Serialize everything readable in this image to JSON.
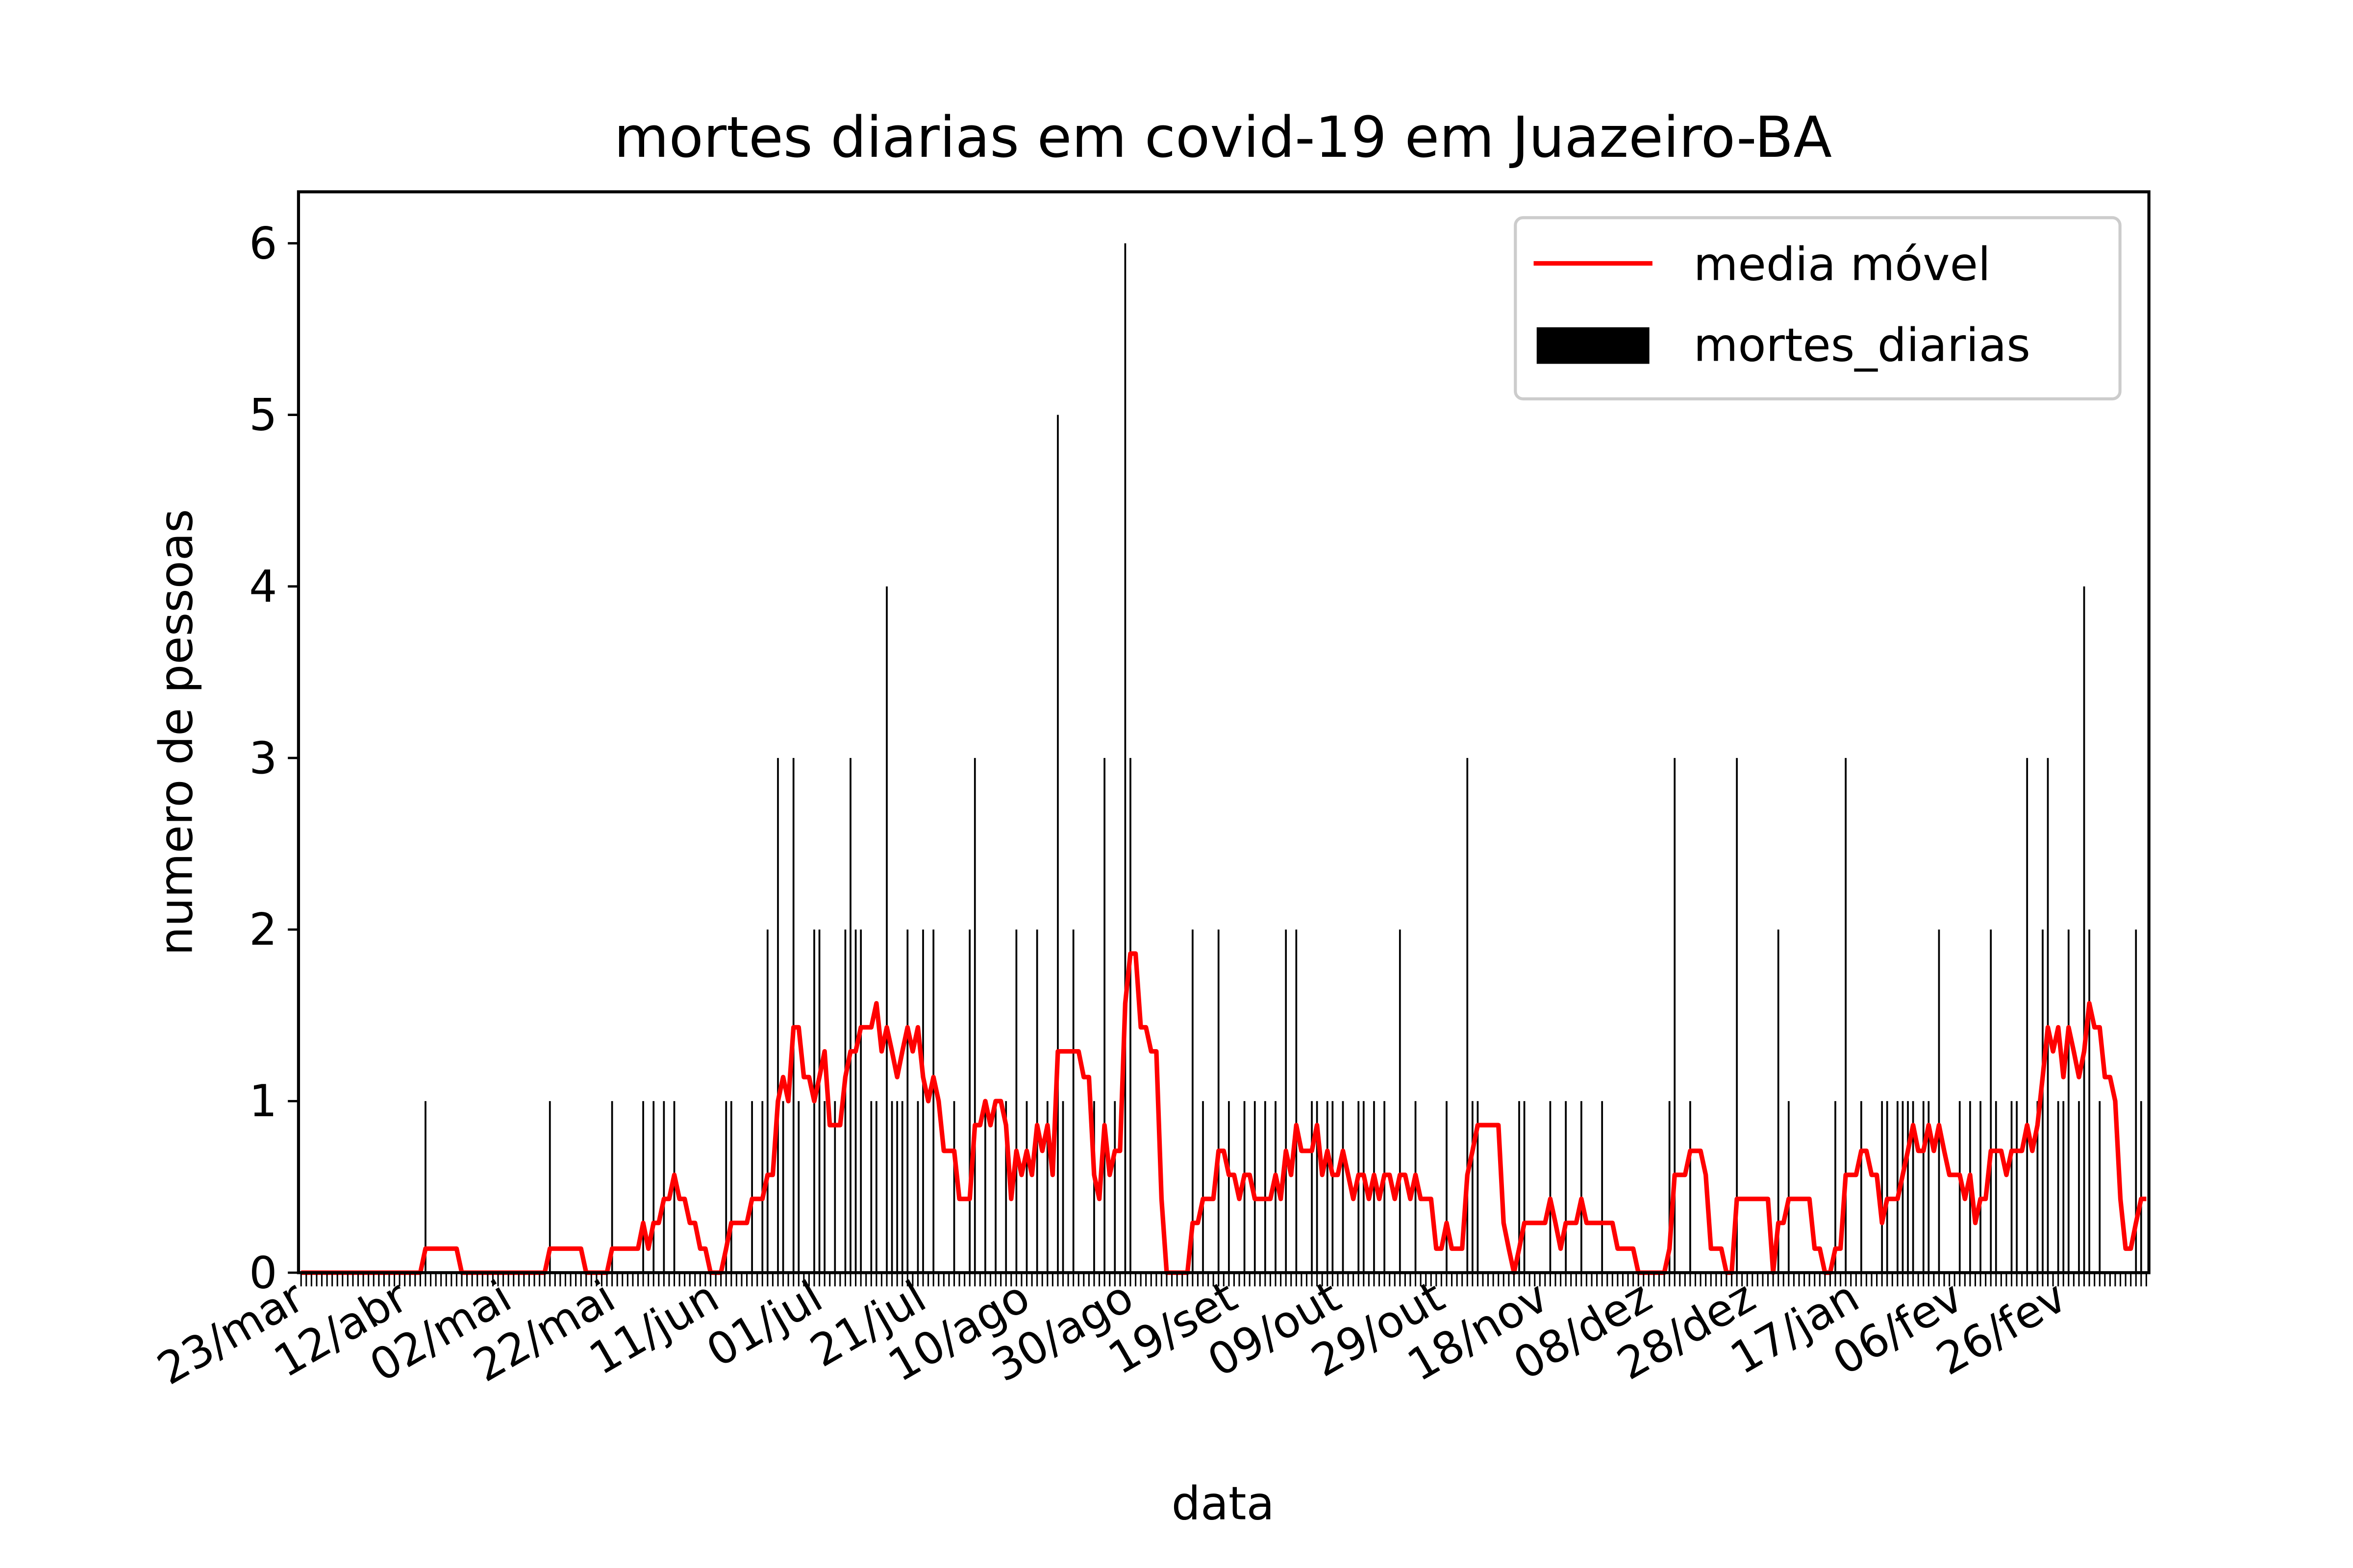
{
  "chart_data": {
    "type": "bar",
    "title": "mortes diarias em covid-19 em Juazeiro-BA",
    "x_label": "data",
    "y_label": "numero de pessoas",
    "categories": [
      "23/mar",
      null,
      null,
      null,
      null,
      null,
      null,
      null,
      null,
      null,
      null,
      null,
      null,
      null,
      null,
      null,
      null,
      null,
      null,
      null,
      "12/abr",
      null,
      null,
      null,
      null,
      null,
      null,
      null,
      null,
      null,
      null,
      null,
      null,
      null,
      null,
      null,
      null,
      null,
      null,
      null,
      "02/mai",
      null,
      null,
      null,
      null,
      null,
      null,
      null,
      null,
      null,
      null,
      null,
      null,
      null,
      null,
      null,
      null,
      null,
      null,
      null,
      "22/mai",
      null,
      null,
      null,
      null,
      null,
      null,
      null,
      null,
      null,
      null,
      null,
      null,
      null,
      null,
      null,
      null,
      null,
      null,
      null,
      "11/jun",
      null,
      null,
      null,
      null,
      null,
      null,
      null,
      null,
      null,
      null,
      null,
      null,
      null,
      null,
      null,
      null,
      null,
      null,
      null,
      "01/jul",
      null,
      null,
      null,
      null,
      null,
      null,
      null,
      null,
      null,
      null,
      null,
      null,
      null,
      null,
      null,
      null,
      null,
      null,
      null,
      "21/jul",
      null,
      null,
      null,
      null,
      null,
      null,
      null,
      null,
      null,
      null,
      null,
      null,
      null,
      null,
      null,
      null,
      null,
      null,
      null,
      "10/ago",
      null,
      null,
      null,
      null,
      null,
      null,
      null,
      null,
      null,
      null,
      null,
      null,
      null,
      null,
      null,
      null,
      null,
      null,
      null,
      "30/ago",
      null,
      null,
      null,
      null,
      null,
      null,
      null,
      null,
      null,
      null,
      null,
      null,
      null,
      null,
      null,
      null,
      null,
      null,
      null,
      "19/set",
      null,
      null,
      null,
      null,
      null,
      null,
      null,
      null,
      null,
      null,
      null,
      null,
      null,
      null,
      null,
      null,
      null,
      null,
      null,
      "09/out",
      null,
      null,
      null,
      null,
      null,
      null,
      null,
      null,
      null,
      null,
      null,
      null,
      null,
      null,
      null,
      null,
      null,
      null,
      null,
      "29/out",
      null,
      null,
      null,
      null,
      null,
      null,
      null,
      null,
      null,
      null,
      null,
      null,
      null,
      null,
      null,
      null,
      null,
      null,
      null,
      "18/nov",
      null,
      null,
      null,
      null,
      null,
      null,
      null,
      null,
      null,
      null,
      null,
      null,
      null,
      null,
      null,
      null,
      null,
      null,
      null,
      "08/dez",
      null,
      null,
      null,
      null,
      null,
      null,
      null,
      null,
      null,
      null,
      null,
      null,
      null,
      null,
      null,
      null,
      null,
      null,
      null,
      "28/dez",
      null,
      null,
      null,
      null,
      null,
      null,
      null,
      null,
      null,
      null,
      null,
      null,
      null,
      null,
      null,
      null,
      null,
      null,
      null,
      "17/jan",
      null,
      null,
      null,
      null,
      null,
      null,
      null,
      null,
      null,
      null,
      null,
      null,
      null,
      null,
      null,
      null,
      null,
      null,
      null,
      "06/fev",
      null,
      null,
      null,
      null,
      null,
      null,
      null,
      null,
      null,
      null,
      null,
      null,
      null,
      null,
      null,
      null,
      null,
      null,
      null,
      "26/fev",
      null,
      null,
      null,
      null,
      null,
      null,
      null,
      null,
      null,
      null,
      null,
      null,
      null,
      null,
      null,
      null
    ],
    "series": [
      {
        "name": "media móvel",
        "type": "line",
        "color": "#ff0000",
        "values": [
          0,
          0,
          0,
          0,
          0,
          0,
          0,
          0,
          0,
          0,
          0,
          0,
          0,
          0,
          0,
          0,
          0,
          0,
          0,
          0,
          0,
          0,
          0,
          0,
          0.14,
          0.14,
          0.14,
          0.14,
          0.14,
          0.14,
          0.14,
          0,
          0,
          0,
          0,
          0,
          0,
          0,
          0,
          0,
          0,
          0,
          0,
          0,
          0,
          0,
          0,
          0,
          0.14,
          0.14,
          0.14,
          0.14,
          0.14,
          0.14,
          0.14,
          0,
          0,
          0,
          0,
          0,
          0.14,
          0.14,
          0.14,
          0.14,
          0.14,
          0.14,
          0.29,
          0.14,
          0.29,
          0.29,
          0.43,
          0.43,
          0.57,
          0.43,
          0.43,
          0.29,
          0.29,
          0.14,
          0.14,
          0,
          0,
          0,
          0.14,
          0.29,
          0.29,
          0.29,
          0.29,
          0.43,
          0.43,
          0.43,
          0.57,
          0.57,
          1,
          1.14,
          1,
          1.43,
          1.43,
          1.14,
          1.14,
          1,
          1.14,
          1.29,
          0.86,
          0.86,
          0.86,
          1.14,
          1.29,
          1.29,
          1.43,
          1.43,
          1.43,
          1.57,
          1.29,
          1.43,
          1.29,
          1.14,
          1.29,
          1.43,
          1.29,
          1.43,
          1.14,
          1,
          1.14,
          1,
          0.71,
          0.71,
          0.71,
          0.43,
          0.43,
          0.43,
          0.86,
          0.86,
          1,
          0.86,
          1,
          1,
          0.86,
          0.43,
          0.71,
          0.57,
          0.71,
          0.57,
          0.86,
          0.71,
          0.86,
          0.57,
          1.29,
          1.29,
          1.29,
          1.29,
          1.29,
          1.14,
          1.14,
          0.57,
          0.43,
          0.86,
          0.57,
          0.71,
          0.71,
          1.57,
          1.86,
          1.86,
          1.43,
          1.43,
          1.29,
          1.29,
          0.43,
          0,
          0,
          0,
          0,
          0,
          0.29,
          0.29,
          0.43,
          0.43,
          0.43,
          0.71,
          0.71,
          0.57,
          0.57,
          0.43,
          0.57,
          0.57,
          0.43,
          0.43,
          0.43,
          0.43,
          0.57,
          0.43,
          0.71,
          0.57,
          0.86,
          0.71,
          0.71,
          0.71,
          0.86,
          0.57,
          0.71,
          0.57,
          0.57,
          0.71,
          0.57,
          0.43,
          0.57,
          0.57,
          0.43,
          0.57,
          0.43,
          0.57,
          0.57,
          0.43,
          0.57,
          0.57,
          0.43,
          0.57,
          0.43,
          0.43,
          0.43,
          0.14,
          0.14,
          0.29,
          0.14,
          0.14,
          0.14,
          0.57,
          0.71,
          0.86,
          0.86,
          0.86,
          0.86,
          0.86,
          0.29,
          0.14,
          0,
          0.14,
          0.29,
          0.29,
          0.29,
          0.29,
          0.29,
          0.43,
          0.29,
          0.14,
          0.29,
          0.29,
          0.29,
          0.43,
          0.29,
          0.29,
          0.29,
          0.29,
          0.29,
          0.29,
          0.14,
          0.14,
          0.14,
          0.14,
          0,
          0,
          0,
          0,
          0,
          0,
          0.14,
          0.57,
          0.57,
          0.57,
          0.71,
          0.71,
          0.71,
          0.57,
          0.14,
          0.14,
          0.14,
          0,
          0,
          0.43,
          0.43,
          0.43,
          0.43,
          0.43,
          0.43,
          0.43,
          0,
          0.29,
          0.29,
          0.43,
          0.43,
          0.43,
          0.43,
          0.43,
          0.14,
          0.14,
          0,
          0,
          0.14,
          0.14,
          0.57,
          0.57,
          0.57,
          0.71,
          0.71,
          0.57,
          0.57,
          0.29,
          0.43,
          0.43,
          0.43,
          0.57,
          0.71,
          0.86,
          0.71,
          0.71,
          0.86,
          0.71,
          0.86,
          0.71,
          0.57,
          0.57,
          0.57,
          0.43,
          0.57,
          0.29,
          0.43,
          0.43,
          0.71,
          0.71,
          0.71,
          0.57,
          0.71,
          0.71,
          0.71,
          0.86,
          0.71,
          0.86,
          1.14,
          1.43,
          1.29,
          1.43,
          1.14,
          1.43,
          1.29,
          1.14,
          1.29,
          1.57,
          1.43,
          1.43,
          1.14,
          1.14,
          1,
          0.43,
          0.14,
          0.14,
          0.29,
          0.43,
          0.43
        ]
      },
      {
        "name": "mortes_diarias",
        "type": "bar",
        "color": "#000000",
        "values": [
          0,
          0,
          0,
          0,
          0,
          0,
          0,
          0,
          0,
          0,
          0,
          0,
          0,
          0,
          0,
          0,
          0,
          0,
          0,
          0,
          0,
          0,
          0,
          0,
          1,
          0,
          0,
          0,
          0,
          0,
          0,
          0,
          0,
          0,
          0,
          0,
          0,
          0,
          0,
          0,
          0,
          0,
          0,
          0,
          0,
          0,
          0,
          0,
          1,
          0,
          0,
          0,
          0,
          0,
          0,
          0,
          0,
          0,
          0,
          0,
          1,
          0,
          0,
          0,
          0,
          0,
          1,
          0,
          1,
          0,
          1,
          0,
          1,
          0,
          0,
          0,
          0,
          0,
          0,
          0,
          0,
          0,
          1,
          1,
          0,
          0,
          0,
          1,
          0,
          1,
          2,
          0,
          3,
          1,
          0,
          3,
          1,
          0,
          0,
          2,
          2,
          1,
          0,
          1,
          0,
          2,
          3,
          2,
          2,
          0,
          1,
          1,
          0,
          4,
          1,
          1,
          1,
          2,
          0,
          1,
          2,
          0,
          2,
          0,
          0,
          0,
          1,
          0,
          0,
          2,
          3,
          0,
          1,
          0,
          1,
          0,
          1,
          0,
          2,
          0,
          1,
          0,
          2,
          0,
          1,
          0,
          5,
          1,
          0,
          2,
          0,
          0,
          0,
          1,
          0,
          3,
          0,
          1,
          0,
          6,
          3,
          0,
          0,
          0,
          0,
          0,
          0,
          0,
          0,
          0,
          0,
          0,
          2,
          0,
          1,
          0,
          0,
          2,
          0,
          1,
          0,
          0,
          1,
          0,
          1,
          0,
          1,
          0,
          1,
          0,
          2,
          0,
          2,
          0,
          0,
          1,
          1,
          0,
          1,
          1,
          0,
          1,
          0,
          0,
          1,
          1,
          0,
          1,
          0,
          1,
          0,
          0,
          2,
          0,
          0,
          1,
          0,
          0,
          0,
          0,
          0,
          1,
          0,
          0,
          0,
          3,
          1,
          1,
          0,
          0,
          0,
          0,
          0,
          0,
          0,
          1,
          1,
          0,
          0,
          0,
          0,
          1,
          0,
          0,
          1,
          0,
          0,
          1,
          0,
          0,
          0,
          1,
          0,
          0,
          0,
          0,
          0,
          0,
          0,
          0,
          0,
          0,
          0,
          0,
          1,
          3,
          0,
          0,
          1,
          0,
          0,
          0,
          0,
          0,
          0,
          0,
          0,
          3,
          0,
          0,
          0,
          0,
          0,
          0,
          0,
          2,
          0,
          1,
          0,
          0,
          0,
          0,
          0,
          0,
          0,
          0,
          1,
          0,
          3,
          0,
          0,
          1,
          0,
          0,
          0,
          1,
          1,
          0,
          1,
          1,
          1,
          1,
          0,
          1,
          1,
          0,
          2,
          0,
          0,
          0,
          1,
          0,
          1,
          0,
          1,
          0,
          2,
          1,
          0,
          0,
          1,
          1,
          0,
          3,
          0,
          1,
          2,
          3,
          0,
          1,
          1,
          2,
          0,
          1,
          4,
          2,
          0,
          1,
          0,
          0,
          0,
          0,
          0,
          0,
          2,
          1,
          0
        ]
      }
    ],
    "ylim": [
      0,
      6.3
    ],
    "yticks": [
      0,
      1,
      2,
      3,
      4,
      5,
      6
    ],
    "legend": "upper right"
  }
}
